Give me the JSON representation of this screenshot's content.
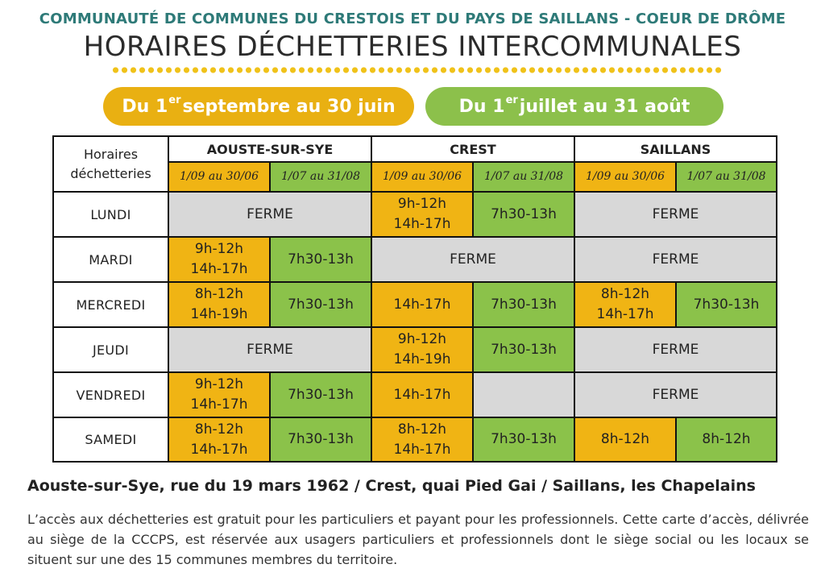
{
  "header": {
    "org": "COMMUNAUTÉ DE COMMUNES DU CRESTOIS ET DU PAYS DE SAILLANS - COEUR DE DRÔME",
    "title": "HORAIRES DÉCHETTERIES INTERCOMMUNALES"
  },
  "periods": {
    "a": {
      "pre": "Du 1",
      "sup": "er",
      "post": " septembre au 30 juin",
      "color": "#e9b012"
    },
    "b": {
      "pre": "Du 1",
      "sup": "er",
      "post": " juillet au 31 août",
      "color": "#8cc04b"
    }
  },
  "table": {
    "corner": [
      "Horaires",
      "déchetteries"
    ],
    "sites": [
      "AOUSTE-SUR-SYE",
      "CREST",
      "SAILLANS"
    ],
    "sub_a": "1/09 au 30/06",
    "sub_b": "1/07 au 31/08",
    "closed": "FERME",
    "days": [
      "LUNDI",
      "MARDI",
      "MERCREDI",
      "JEUDI",
      "VENDREDI",
      "SAMEDI"
    ],
    "cells": {
      "mardi_aouste_a": [
        "9h-12h",
        "14h-17h"
      ],
      "mardi_aouste_b": "7h30-13h",
      "mercredi_aouste_a": [
        "8h-12h",
        "14h-19h"
      ],
      "mercredi_aouste_b": "7h30-13h",
      "vendredi_aouste_a": [
        "9h-12h",
        "14h-17h"
      ],
      "vendredi_aouste_b": "7h30-13h",
      "samedi_aouste_a": [
        "8h-12h",
        "14h-17h"
      ],
      "samedi_aouste_b": "7h30-13h",
      "lundi_crest_a": [
        "9h-12h",
        "14h-17h"
      ],
      "lundi_crest_b": "7h30-13h",
      "mercredi_crest_a": "14h-17h",
      "mercredi_crest_b": "7h30-13h",
      "jeudi_crest_a": [
        "9h-12h",
        "14h-19h"
      ],
      "jeudi_crest_b": "7h30-13h",
      "vendredi_crest_a": "14h-17h",
      "samedi_crest_a": [
        "8h-12h",
        "14h-17h"
      ],
      "samedi_crest_b": "7h30-13h",
      "mercredi_saillans_a": [
        "8h-12h",
        "14h-17h"
      ],
      "mercredi_saillans_b": "7h30-13h",
      "samedi_saillans_a": "8h-12h",
      "samedi_saillans_b": "8h-12h"
    }
  },
  "footer": {
    "addresses": "Aouste-sur-Sye, rue du 19 mars 1962 / Crest, quai Pied Gai / Saillans, les Chapelains",
    "note": "L’accès aux déchetteries est gratuit pour les particuliers et payant pour les professionnels. Cette carte d’accès, délivrée au siège de la CCCPS, est réservée aux usagers particuliers et professionnels dont le siège social ou les locaux se situent sur une des 15 communes membres du territoire."
  }
}
